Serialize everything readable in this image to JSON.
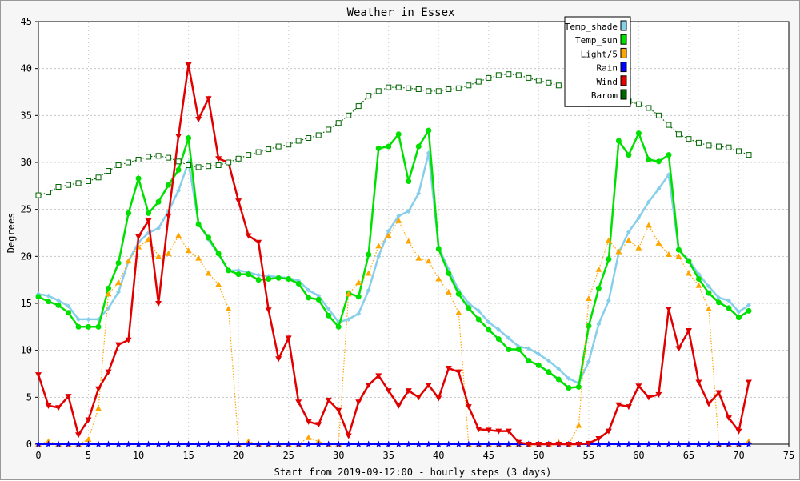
{
  "chart_data": {
    "type": "line",
    "title": "Weather in Essex",
    "xlabel": "Start from 2019-09-12:00 - hourly steps (3 days)",
    "ylabel": "Degrees",
    "xlim": [
      0,
      75
    ],
    "ylim": [
      0,
      45
    ],
    "xticks": [
      0,
      5,
      10,
      15,
      20,
      25,
      30,
      35,
      40,
      45,
      50,
      55,
      60,
      65,
      70,
      75
    ],
    "yticks": [
      0,
      5,
      10,
      15,
      20,
      25,
      30,
      35,
      40,
      45
    ],
    "grid": true,
    "legend_position": "top-right",
    "series": [
      {
        "name": "Temp_shade",
        "color": "#87ceeb",
        "marker": "diamond",
        "line": "solid",
        "x": [
          0,
          1,
          2,
          3,
          4,
          5,
          6,
          7,
          8,
          9,
          10,
          11,
          12,
          13,
          14,
          15,
          16,
          17,
          18,
          19,
          20,
          21,
          22,
          23,
          24,
          25,
          26,
          27,
          28,
          29,
          30,
          31,
          32,
          33,
          34,
          35,
          36,
          37,
          38,
          39,
          40,
          41,
          42,
          43,
          44,
          45,
          46,
          47,
          48,
          49,
          50,
          51,
          52,
          53,
          54,
          55,
          56,
          57,
          58,
          59,
          60,
          61,
          62,
          63,
          64,
          65,
          66,
          67,
          68,
          69,
          70,
          71
        ],
        "values": [
          16,
          15.8,
          15.3,
          14.7,
          13.3,
          13.3,
          13.3,
          14.5,
          16.2,
          19.5,
          21.5,
          22.5,
          23,
          24.8,
          27,
          30,
          23.6,
          21.8,
          20.2,
          18.5,
          18.5,
          18.3,
          18,
          17.9,
          17.8,
          17.7,
          17.4,
          16.4,
          15.8,
          14.4,
          13,
          13.3,
          13.9,
          16.4,
          20,
          22.7,
          24.3,
          24.8,
          26.7,
          31,
          21,
          18.6,
          16.4,
          15,
          14.2,
          13,
          12.2,
          11.3,
          10.4,
          10.2,
          9.6,
          8.9,
          8,
          7,
          6.5,
          8.8,
          12.8,
          15.3,
          20.4,
          22.6,
          24.1,
          25.8,
          27.2,
          28.7,
          20.7,
          19.6,
          18.1,
          16.8,
          15.6,
          15.3,
          14.1,
          14.8
        ]
      },
      {
        "name": "Temp_sun",
        "color": "#00e000",
        "marker": "circle",
        "line": "solid",
        "x": [
          0,
          1,
          2,
          3,
          4,
          5,
          6,
          7,
          8,
          9,
          10,
          11,
          12,
          13,
          14,
          15,
          16,
          17,
          18,
          19,
          20,
          21,
          22,
          23,
          24,
          25,
          26,
          27,
          28,
          29,
          30,
          31,
          32,
          33,
          34,
          35,
          36,
          37,
          38,
          39,
          40,
          41,
          42,
          43,
          44,
          45,
          46,
          47,
          48,
          49,
          50,
          51,
          52,
          53,
          54,
          55,
          56,
          57,
          58,
          59,
          60,
          61,
          62,
          63,
          64,
          65,
          66,
          67,
          68,
          69,
          70,
          71
        ],
        "values": [
          15.7,
          15.2,
          14.8,
          14,
          12.5,
          12.5,
          12.5,
          16.6,
          19.3,
          24.6,
          28.3,
          24.6,
          25.8,
          27.6,
          29.2,
          32.6,
          23.4,
          22,
          20.3,
          18.5,
          18.1,
          18.1,
          17.5,
          17.6,
          17.7,
          17.6,
          17.1,
          15.6,
          15.4,
          13.7,
          12.5,
          16.1,
          15.7,
          20.2,
          31.5,
          31.7,
          33,
          28,
          31.7,
          33.4,
          20.8,
          18.2,
          16,
          14.5,
          13.3,
          12.2,
          11.2,
          10.1,
          10.1,
          8.9,
          8.4,
          7.7,
          6.9,
          6,
          6.1,
          12.6,
          16.6,
          19.7,
          32.3,
          30.8,
          33.1,
          30.3,
          30.1,
          30.8,
          20.7,
          19.5,
          17.6,
          16.1,
          15.1,
          14.5,
          13.5,
          14.2
        ]
      },
      {
        "name": "Light/5",
        "color": "#ffa500",
        "marker": "triangle",
        "line": "dotted",
        "x": [
          0,
          1,
          2,
          3,
          4,
          5,
          6,
          7,
          8,
          9,
          10,
          11,
          12,
          13,
          14,
          15,
          16,
          17,
          18,
          19,
          20,
          21,
          22,
          23,
          24,
          25,
          26,
          27,
          28,
          29,
          30,
          31,
          32,
          33,
          34,
          35,
          36,
          37,
          38,
          39,
          40,
          41,
          42,
          43,
          44,
          45,
          46,
          47,
          48,
          49,
          50,
          51,
          52,
          53,
          54,
          55,
          56,
          57,
          58,
          59,
          60,
          61,
          62,
          63,
          64,
          65,
          66,
          67,
          68,
          69,
          70,
          71
        ],
        "values": [
          0,
          0.3,
          0,
          0,
          0,
          0.5,
          3.8,
          16,
          17.2,
          19.5,
          21,
          21.8,
          20,
          20.3,
          22.2,
          20.6,
          19.8,
          18.2,
          17,
          14.4,
          0,
          0.3,
          0,
          0,
          0,
          0,
          0,
          0.7,
          0.3,
          0,
          0,
          16,
          17.2,
          18.2,
          21.1,
          22.2,
          23.8,
          21.6,
          19.8,
          19.5,
          17.6,
          16.2,
          14,
          0,
          0,
          0,
          0,
          0,
          0,
          0,
          0,
          0,
          0.2,
          0,
          2,
          15.5,
          18.6,
          21.7,
          20.5,
          21.7,
          20.9,
          23.3,
          21.4,
          20.2,
          20,
          18.2,
          16.9,
          14.4,
          0,
          0,
          0,
          0.3
        ]
      },
      {
        "name": "Rain",
        "color": "#0000ff",
        "marker": "star",
        "line": "solid",
        "x": [
          0,
          1,
          2,
          3,
          4,
          5,
          6,
          7,
          8,
          9,
          10,
          11,
          12,
          13,
          14,
          15,
          16,
          17,
          18,
          19,
          20,
          21,
          22,
          23,
          24,
          25,
          26,
          27,
          28,
          29,
          30,
          31,
          32,
          33,
          34,
          35,
          36,
          37,
          38,
          39,
          40,
          41,
          42,
          43,
          44,
          45,
          46,
          47,
          48,
          49,
          50,
          51,
          52,
          53,
          54,
          55,
          56,
          57,
          58,
          59,
          60,
          61,
          62,
          63,
          64,
          65,
          66,
          67,
          68,
          69,
          70,
          71
        ],
        "values": [
          0,
          0,
          0,
          0,
          0,
          0,
          0,
          0,
          0,
          0,
          0,
          0,
          0,
          0,
          0,
          0,
          0,
          0,
          0,
          0,
          0,
          0,
          0,
          0,
          0,
          0,
          0,
          0,
          0,
          0,
          0,
          0,
          0,
          0,
          0,
          0,
          0,
          0,
          0,
          0,
          0,
          0,
          0,
          0,
          0,
          0,
          0,
          0,
          0,
          0,
          0,
          0,
          0,
          0,
          0,
          0,
          0,
          0,
          0,
          0,
          0,
          0,
          0,
          0,
          0,
          0,
          0,
          0,
          0,
          0,
          0,
          0
        ]
      },
      {
        "name": "Wind",
        "color": "#e00000",
        "marker": "triangle-down",
        "line": "solid",
        "x": [
          0,
          1,
          2,
          3,
          4,
          5,
          6,
          7,
          8,
          9,
          10,
          11,
          12,
          13,
          14,
          15,
          16,
          17,
          18,
          19,
          20,
          21,
          22,
          23,
          24,
          25,
          26,
          27,
          28,
          29,
          30,
          31,
          32,
          33,
          34,
          35,
          36,
          37,
          38,
          39,
          40,
          41,
          42,
          43,
          44,
          45,
          46,
          47,
          48,
          49,
          50,
          51,
          52,
          53,
          54,
          55,
          56,
          57,
          58,
          59,
          60,
          61,
          62,
          63,
          64,
          65,
          66,
          67,
          68,
          69,
          70,
          71
        ],
        "values": [
          7.4,
          4.1,
          3.9,
          5.1,
          1,
          2.6,
          5.9,
          7.7,
          10.6,
          11.1,
          22.1,
          23.8,
          15,
          24.3,
          32.8,
          40.4,
          34.6,
          36.8,
          30.4,
          30,
          25.9,
          22.2,
          21.5,
          14.3,
          9.1,
          11.3,
          4.5,
          2.4,
          2.1,
          4.7,
          3.6,
          0.9,
          4.5,
          6.3,
          7.3,
          5.7,
          4.1,
          5.7,
          5,
          6.3,
          4.9,
          8.1,
          7.7,
          4,
          1.6,
          1.5,
          1.4,
          1.4,
          0.2,
          0,
          0,
          0,
          0,
          0,
          0,
          0.1,
          0.6,
          1.4,
          4.2,
          4,
          6.2,
          5,
          5.3,
          14.4,
          10.2,
          12.1,
          6.6,
          4.3,
          5.5,
          2.8,
          1.4,
          6.6
        ]
      },
      {
        "name": "Barom",
        "color": "#006400",
        "marker": "square",
        "line": "dotted",
        "x": [
          0,
          1,
          2,
          3,
          4,
          5,
          6,
          7,
          8,
          9,
          10,
          11,
          12,
          13,
          14,
          15,
          16,
          17,
          18,
          19,
          20,
          21,
          22,
          23,
          24,
          25,
          26,
          27,
          28,
          29,
          30,
          31,
          32,
          33,
          34,
          35,
          36,
          37,
          38,
          39,
          40,
          41,
          42,
          43,
          44,
          45,
          46,
          47,
          48,
          49,
          50,
          51,
          52,
          53,
          54,
          55,
          56,
          57,
          58,
          59,
          60,
          61,
          62,
          63,
          64,
          65,
          66,
          67,
          68,
          69,
          70,
          71
        ],
        "values": [
          26.5,
          26.8,
          27.4,
          27.6,
          27.8,
          28,
          28.4,
          29.1,
          29.7,
          30,
          30.3,
          30.6,
          30.7,
          30.5,
          30.1,
          29.7,
          29.5,
          29.6,
          29.7,
          30,
          30.4,
          30.8,
          31.1,
          31.4,
          31.7,
          31.9,
          32.3,
          32.6,
          32.9,
          33.5,
          34.2,
          35,
          36,
          37.1,
          37.6,
          38,
          38,
          37.9,
          37.8,
          37.6,
          37.6,
          37.8,
          37.9,
          38.2,
          38.6,
          39,
          39.3,
          39.4,
          39.3,
          39,
          38.7,
          38.5,
          38.2,
          38,
          37.5,
          37.3,
          37.3,
          37.2,
          36.8,
          36.5,
          36.2,
          35.8,
          35,
          34,
          33,
          32.5,
          32.1,
          31.8,
          31.7,
          31.6,
          31.2,
          30.8
        ]
      }
    ]
  }
}
